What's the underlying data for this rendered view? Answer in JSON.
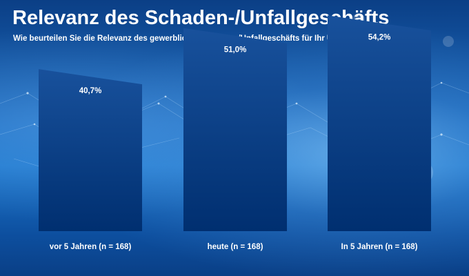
{
  "chart_data": {
    "type": "bar",
    "title": "Relevanz des Schaden-/Unfallgeschäfts",
    "subtitle": "Wie beurteilen Sie die Relevanz des gewerblichen Schaden-/Unfallgeschäfts für Ihr Unternehmen?",
    "categories": [
      "vor 5 Jahren (n = 168)",
      "heute (n = 168)",
      "In 5 Jahren (n = 168)"
    ],
    "values": [
      40.7,
      51.0,
      54.2
    ],
    "value_labels": [
      "40,7%",
      "51,0%",
      "54,2%"
    ],
    "ylim": [
      0,
      60
    ],
    "xlabel": "",
    "ylabel": "",
    "grid": false,
    "legend": "none"
  },
  "colors": {
    "bar_top": "#18519c",
    "bar_bottom": "#002f70",
    "text": "#ffffff"
  }
}
